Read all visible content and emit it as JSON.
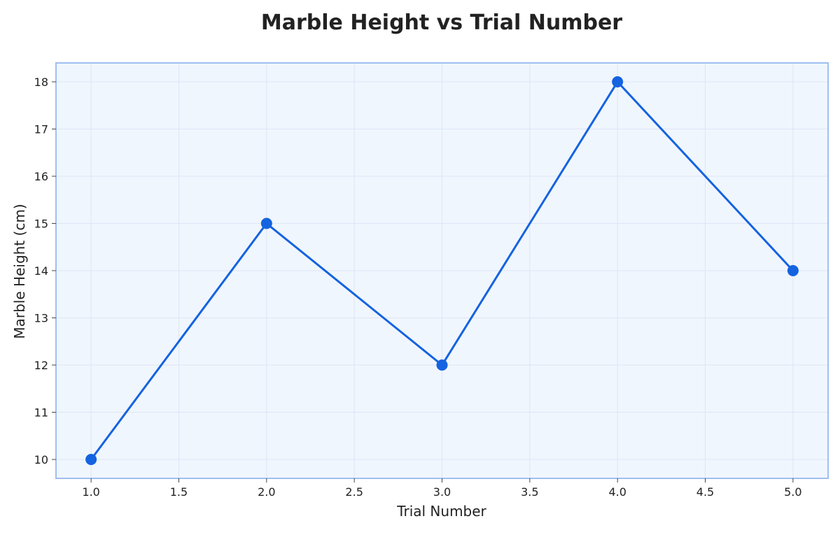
{
  "chart_data": {
    "type": "line",
    "title": "Marble Height vs Trial Number",
    "xlabel": "Trial Number",
    "ylabel": "Marble Height (cm)",
    "x": [
      1.0,
      2.0,
      3.0,
      4.0,
      5.0
    ],
    "series": [
      {
        "values": [
          10,
          15,
          12,
          18,
          14
        ]
      }
    ],
    "xlim": [
      0.8,
      5.2
    ],
    "ylim": [
      9.6,
      18.4
    ],
    "xticks": [
      1.0,
      1.5,
      2.0,
      2.5,
      3.0,
      3.5,
      4.0,
      4.5,
      5.0
    ],
    "xtick_labels": [
      "1.0",
      "1.5",
      "2.0",
      "2.5",
      "3.0",
      "3.5",
      "4.0",
      "4.5",
      "5.0"
    ],
    "yticks": [
      10,
      11,
      12,
      13,
      14,
      15,
      16,
      17,
      18
    ],
    "ytick_labels": [
      "10",
      "11",
      "12",
      "13",
      "14",
      "15",
      "16",
      "17",
      "18"
    ],
    "grid": true,
    "colors": {
      "line": "#1463e0",
      "marker": "#1463e0",
      "plot_background": "#f0f6fd",
      "plot_border": "#9fbff0",
      "grid": "#dde6f7"
    }
  }
}
